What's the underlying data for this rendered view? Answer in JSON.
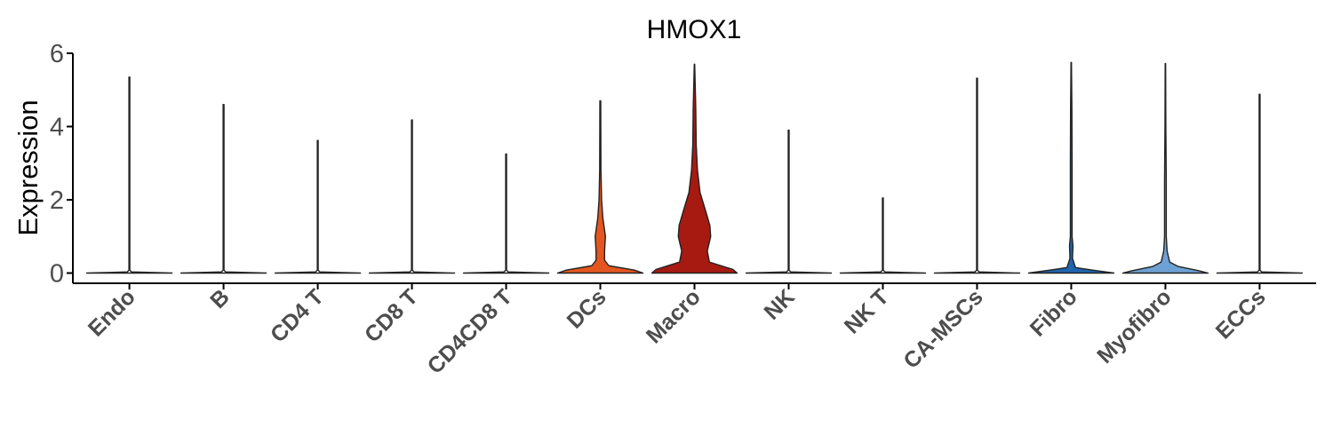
{
  "chart_data": {
    "type": "violin",
    "title": "HMOX1",
    "xlabel": "",
    "ylabel": "Expression",
    "ylim": [
      0,
      6
    ],
    "yticks": [
      "0",
      "2",
      "4",
      "6"
    ],
    "grid": false,
    "legend": "none",
    "categories": [
      "Endo",
      "B",
      "CD4 T",
      "CD8 T",
      "CD4CD8 T",
      "DCs",
      "Macro",
      "NK",
      "NK T",
      "CA-MSCs",
      "Fibro",
      "Myofibro",
      "ECCs"
    ],
    "max_values": [
      5.35,
      4.6,
      3.62,
      4.18,
      3.25,
      4.7,
      5.7,
      3.9,
      2.05,
      5.32,
      5.75,
      5.72,
      4.88
    ],
    "fill_colors": [
      "#ffffff",
      "#ffffff",
      "#ffffff",
      "#ffffff",
      "#ffffff",
      "#e4561f",
      "#a61a12",
      "#ffffff",
      "#ffffff",
      "#ffffff",
      "#1f65ad",
      "#6ea1d3",
      "#ffffff"
    ],
    "density_profiles": [
      [
        [
          0,
          1
        ],
        [
          0.03,
          0.05
        ],
        [
          0.08,
          0.01
        ],
        [
          5.35,
          0.01
        ]
      ],
      [
        [
          0,
          1
        ],
        [
          0.03,
          0.05
        ],
        [
          0.08,
          0.01
        ],
        [
          4.6,
          0.01
        ]
      ],
      [
        [
          0,
          1
        ],
        [
          0.03,
          0.05
        ],
        [
          0.08,
          0.01
        ],
        [
          3.62,
          0.01
        ]
      ],
      [
        [
          0,
          1
        ],
        [
          0.03,
          0.05
        ],
        [
          0.08,
          0.01
        ],
        [
          4.18,
          0.01
        ]
      ],
      [
        [
          0,
          1
        ],
        [
          0.03,
          0.05
        ],
        [
          0.08,
          0.01
        ],
        [
          3.25,
          0.01
        ]
      ],
      [
        [
          0,
          1
        ],
        [
          0.08,
          0.8
        ],
        [
          0.2,
          0.2
        ],
        [
          0.35,
          0.1
        ],
        [
          0.6,
          0.1
        ],
        [
          1.0,
          0.12
        ],
        [
          1.5,
          0.06
        ],
        [
          2.0,
          0.03
        ],
        [
          2.8,
          0.015
        ],
        [
          4.7,
          0.01
        ]
      ],
      [
        [
          0,
          1
        ],
        [
          0.1,
          0.9
        ],
        [
          0.3,
          0.35
        ],
        [
          0.6,
          0.3
        ],
        [
          1.0,
          0.38
        ],
        [
          1.3,
          0.36
        ],
        [
          1.7,
          0.26
        ],
        [
          2.2,
          0.13
        ],
        [
          2.8,
          0.07
        ],
        [
          3.5,
          0.04
        ],
        [
          4.5,
          0.03
        ],
        [
          5.7,
          0.005
        ]
      ],
      [
        [
          0,
          1
        ],
        [
          0.03,
          0.05
        ],
        [
          0.08,
          0.01
        ],
        [
          3.9,
          0.01
        ]
      ],
      [
        [
          0,
          1
        ],
        [
          0.03,
          0.05
        ],
        [
          0.08,
          0.01
        ],
        [
          2.05,
          0.01
        ]
      ],
      [
        [
          0,
          1
        ],
        [
          0.03,
          0.05
        ],
        [
          0.08,
          0.01
        ],
        [
          5.32,
          0.01
        ]
      ],
      [
        [
          0,
          1
        ],
        [
          0.08,
          0.5
        ],
        [
          0.15,
          0.1
        ],
        [
          0.4,
          0.03
        ],
        [
          0.75,
          0.04
        ],
        [
          1.0,
          0.02
        ],
        [
          3.0,
          0.02
        ],
        [
          4.5,
          0.015
        ],
        [
          5.75,
          0.005
        ]
      ],
      [
        [
          0,
          1
        ],
        [
          0.06,
          0.8
        ],
        [
          0.18,
          0.3
        ],
        [
          0.3,
          0.1
        ],
        [
          0.6,
          0.04
        ],
        [
          1.0,
          0.02
        ],
        [
          2.5,
          0.02
        ],
        [
          4.0,
          0.01
        ],
        [
          5.72,
          0.005
        ]
      ],
      [
        [
          0,
          1
        ],
        [
          0.03,
          0.05
        ],
        [
          0.08,
          0.01
        ],
        [
          4.88,
          0.01
        ]
      ]
    ]
  }
}
